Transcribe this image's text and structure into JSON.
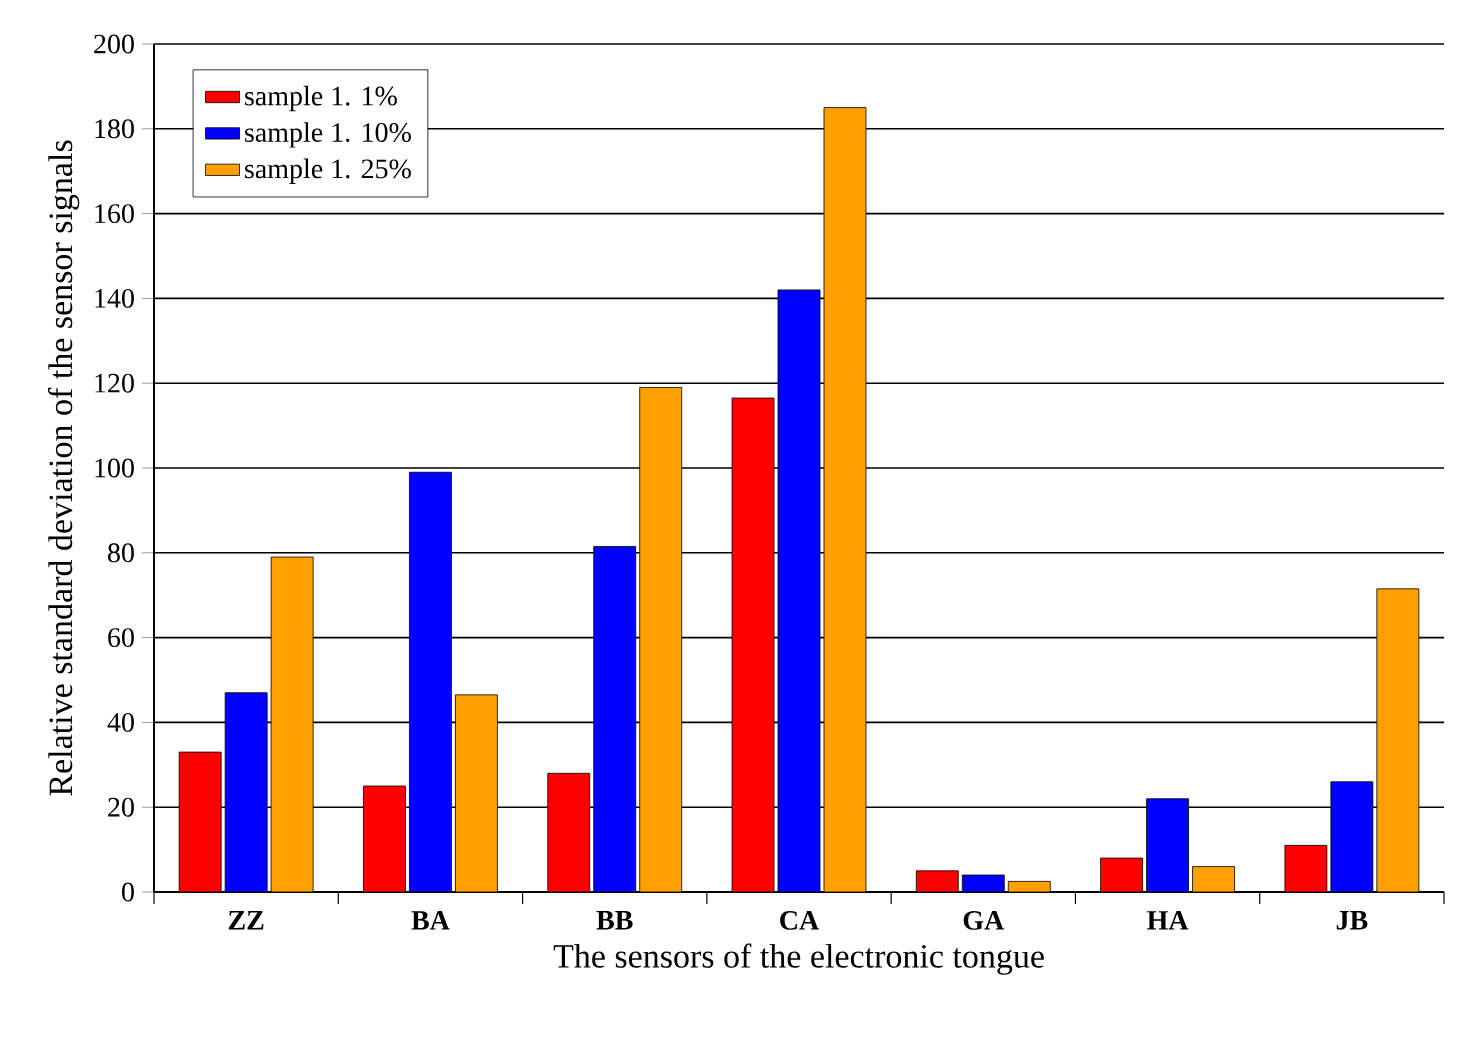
{
  "chart_data": {
    "type": "bar",
    "xlabel": "The sensors of the electronic tongue",
    "ylabel": "Relative standard deviation of the sensor signals",
    "categories": [
      "ZZ",
      "BA",
      "BB",
      "CA",
      "GA",
      "HA",
      "JB"
    ],
    "series": [
      {
        "name": "sample 1. 1%",
        "color": "#ff0000",
        "values": [
          33,
          25,
          28,
          116.5,
          5,
          8,
          11
        ]
      },
      {
        "name": "sample 1. 10%",
        "color": "#0000ff",
        "values": [
          47,
          99,
          81.5,
          142,
          4,
          22,
          26
        ]
      },
      {
        "name": "sample 1. 25%",
        "color": "#ffa000",
        "values": [
          79,
          46.5,
          119,
          185,
          2.5,
          6,
          71.5
        ]
      }
    ],
    "ylim": [
      0,
      200
    ],
    "yticks": [
      0,
      20,
      40,
      60,
      80,
      100,
      120,
      140,
      160,
      180,
      200
    ],
    "grid": "y",
    "legend": "top left"
  }
}
